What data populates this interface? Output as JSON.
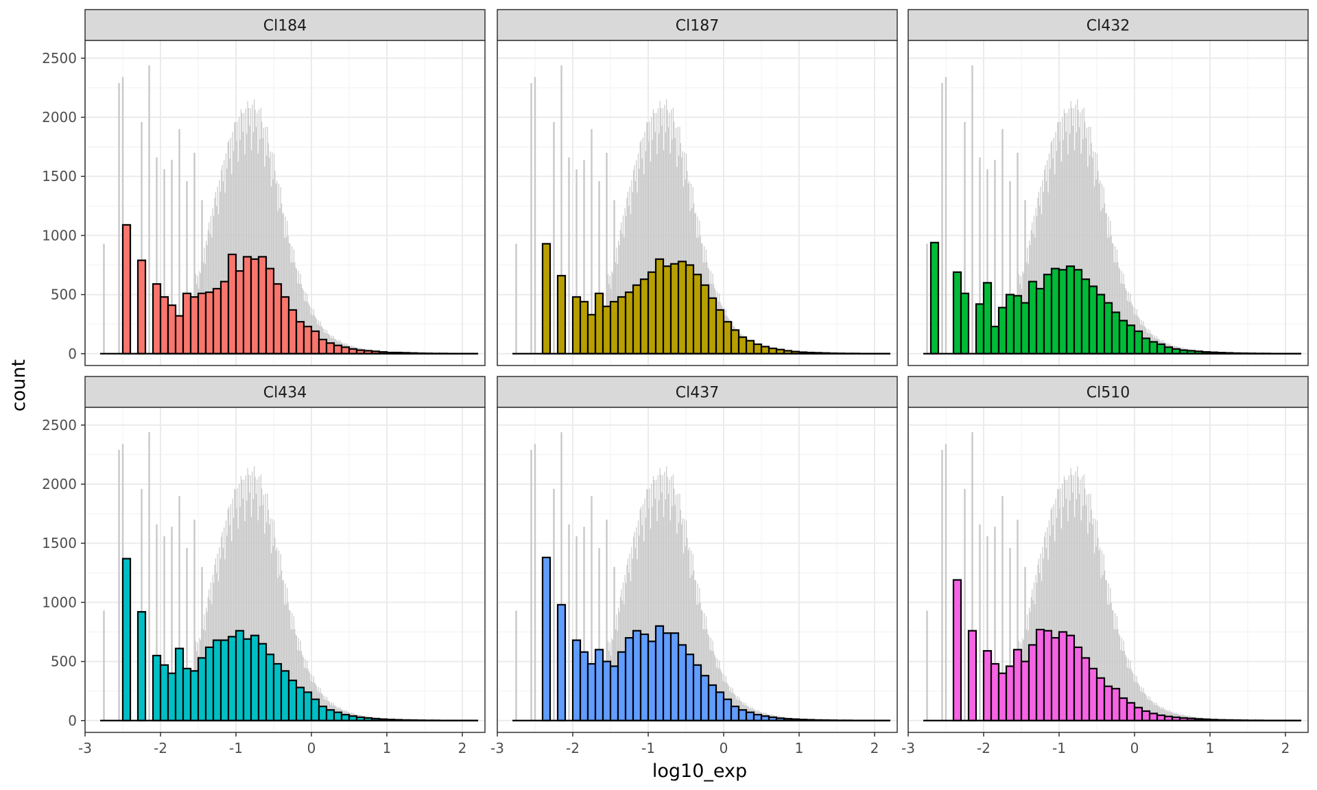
{
  "chart_data": {
    "type": "histogram",
    "facet_layout": "2 rows x 3 columns",
    "xlabel": "log10_exp",
    "ylabel": "count",
    "xlim": [
      -3.0,
      2.3
    ],
    "ylim": [
      -100,
      2650
    ],
    "x_ticks": [
      -3,
      -2,
      -1,
      0,
      1,
      2
    ],
    "x_tick_labels": [
      "-3",
      "-2",
      "-1",
      "0",
      "1",
      "2"
    ],
    "y_ticks": [
      0,
      500,
      1000,
      1500,
      2000,
      2500
    ],
    "y_tick_labels": [
      "0",
      "500",
      "1000",
      "1500",
      "2000",
      "2500"
    ],
    "bin_start": -2.8,
    "bin_width": 0.1,
    "background_histogram": {
      "description": "all clusters combined (grey)",
      "color": "#c8c8c8",
      "spikes": [
        {
          "x": -2.75,
          "count": 930
        },
        {
          "x": -2.55,
          "count": 2290
        },
        {
          "x": -2.5,
          "count": 2340
        },
        {
          "x": -2.25,
          "count": 1960
        },
        {
          "x": -2.15,
          "count": 2440
        },
        {
          "x": -2.05,
          "count": 1660
        },
        {
          "x": -1.95,
          "count": 1560
        },
        {
          "x": -1.85,
          "count": 1640
        },
        {
          "x": -1.75,
          "count": 1900
        },
        {
          "x": -1.65,
          "count": 1460
        },
        {
          "x": -1.55,
          "count": 1700
        },
        {
          "x": -1.45,
          "count": 1300
        }
      ],
      "curve": [
        {
          "x": -1.5,
          "count": 620
        },
        {
          "x": -1.4,
          "count": 900
        },
        {
          "x": -1.3,
          "count": 1200
        },
        {
          "x": -1.2,
          "count": 1450
        },
        {
          "x": -1.1,
          "count": 1690
        },
        {
          "x": -1.0,
          "count": 1860
        },
        {
          "x": -0.9,
          "count": 1950
        },
        {
          "x": -0.8,
          "count": 2000
        },
        {
          "x": -0.7,
          "count": 1960
        },
        {
          "x": -0.6,
          "count": 1800
        },
        {
          "x": -0.5,
          "count": 1560
        },
        {
          "x": -0.4,
          "count": 1260
        },
        {
          "x": -0.3,
          "count": 960
        },
        {
          "x": -0.2,
          "count": 720
        },
        {
          "x": -0.1,
          "count": 520
        },
        {
          "x": 0.0,
          "count": 370
        },
        {
          "x": 0.1,
          "count": 260
        },
        {
          "x": 0.2,
          "count": 180
        },
        {
          "x": 0.3,
          "count": 130
        },
        {
          "x": 0.4,
          "count": 95
        },
        {
          "x": 0.5,
          "count": 70
        },
        {
          "x": 0.6,
          "count": 52
        },
        {
          "x": 0.7,
          "count": 40
        },
        {
          "x": 0.8,
          "count": 30
        },
        {
          "x": 0.9,
          "count": 23
        },
        {
          "x": 1.0,
          "count": 18
        },
        {
          "x": 1.1,
          "count": 14
        },
        {
          "x": 1.2,
          "count": 10
        },
        {
          "x": 1.3,
          "count": 7
        },
        {
          "x": 1.4,
          "count": 5
        },
        {
          "x": 1.6,
          "count": 2
        },
        {
          "x": 2.1,
          "count": 0
        }
      ]
    },
    "series": [
      {
        "name": "Cl184",
        "color": "#F8766D",
        "values": [
          0,
          0,
          0,
          1090,
          0,
          790,
          0,
          590,
          480,
          410,
          320,
          510,
          480,
          510,
          520,
          550,
          610,
          840,
          700,
          820,
          800,
          820,
          720,
          590,
          480,
          370,
          270,
          230,
          190,
          120,
          90,
          70,
          55,
          40,
          30,
          25,
          20,
          15,
          10,
          10,
          8,
          6,
          4,
          3,
          2,
          2,
          1,
          1,
          1,
          1
        ]
      },
      {
        "name": "Cl187",
        "color": "#B79F00",
        "values": [
          0,
          0,
          0,
          0,
          930,
          0,
          660,
          0,
          480,
          440,
          330,
          510,
          400,
          440,
          480,
          520,
          580,
          630,
          690,
          800,
          740,
          760,
          780,
          750,
          670,
          580,
          470,
          370,
          270,
          200,
          140,
          110,
          80,
          60,
          45,
          35,
          25,
          18,
          13,
          10,
          8,
          6,
          4,
          3,
          2,
          2,
          1,
          1,
          1,
          1
        ]
      },
      {
        "name": "Cl432",
        "color": "#00BA38",
        "values": [
          0,
          940,
          0,
          0,
          690,
          510,
          0,
          420,
          600,
          230,
          390,
          500,
          490,
          430,
          610,
          550,
          670,
          720,
          710,
          740,
          710,
          630,
          570,
          500,
          430,
          350,
          280,
          240,
          190,
          130,
          100,
          80,
          55,
          40,
          30,
          25,
          20,
          15,
          12,
          9,
          7,
          5,
          4,
          3,
          2,
          2,
          1,
          1,
          1,
          1
        ]
      },
      {
        "name": "Cl434",
        "color": "#00BFC4",
        "values": [
          0,
          0,
          0,
          1370,
          0,
          920,
          0,
          550,
          470,
          400,
          610,
          440,
          420,
          530,
          620,
          680,
          680,
          710,
          760,
          690,
          720,
          650,
          560,
          480,
          420,
          340,
          280,
          240,
          180,
          120,
          90,
          70,
          50,
          38,
          28,
          22,
          16,
          12,
          9,
          7,
          5,
          4,
          3,
          2,
          2,
          1,
          1,
          1,
          1,
          1
        ]
      },
      {
        "name": "Cl437",
        "color": "#619CFF",
        "values": [
          0,
          0,
          0,
          0,
          1380,
          0,
          980,
          0,
          680,
          580,
          480,
          600,
          500,
          460,
          580,
          700,
          760,
          730,
          670,
          800,
          740,
          740,
          640,
          560,
          470,
          380,
          300,
          240,
          180,
          120,
          90,
          70,
          50,
          38,
          28,
          20,
          15,
          12,
          9,
          7,
          5,
          4,
          3,
          2,
          2,
          1,
          1,
          1,
          1,
          1
        ]
      },
      {
        "name": "Cl510",
        "color": "#F564E3",
        "values": [
          0,
          0,
          0,
          0,
          1190,
          0,
          760,
          0,
          590,
          480,
          400,
          460,
          600,
          500,
          640,
          770,
          760,
          700,
          750,
          720,
          620,
          530,
          440,
          360,
          290,
          270,
          190,
          150,
          110,
          80,
          60,
          45,
          35,
          28,
          22,
          18,
          14,
          11,
          8,
          6,
          5,
          4,
          3,
          2,
          2,
          1,
          1,
          1,
          1,
          1
        ]
      }
    ]
  }
}
